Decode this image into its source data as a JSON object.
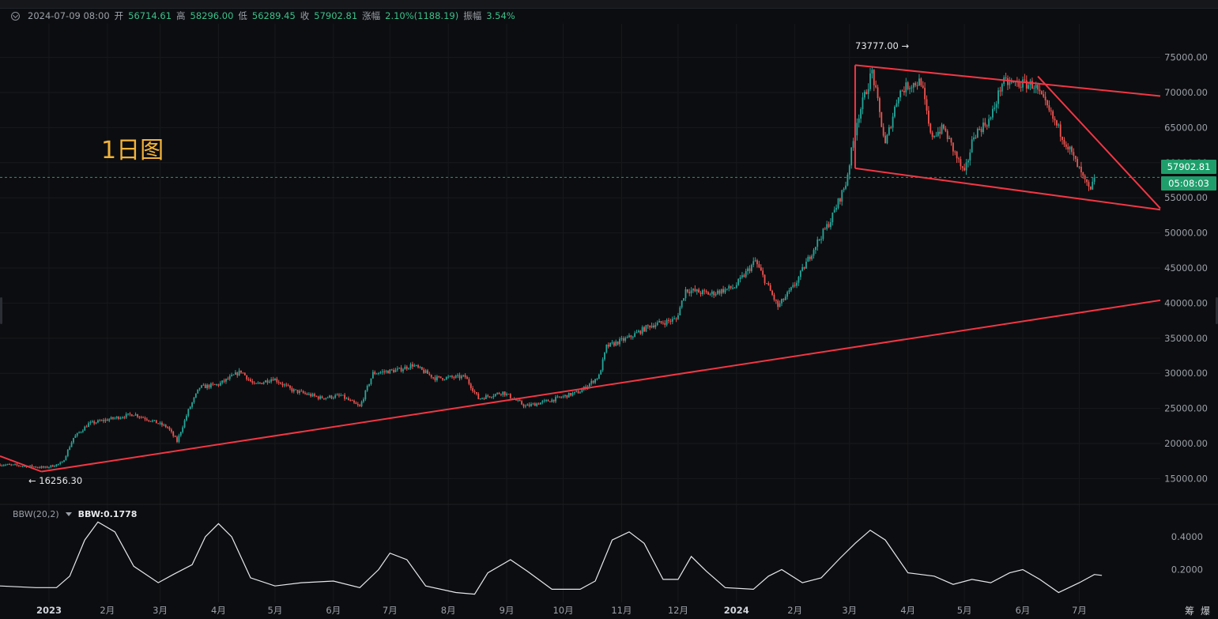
{
  "header": {
    "datetime": "2024-07-09 08:00",
    "open_label": "开",
    "open": "56714.61",
    "high_label": "高",
    "high": "58296.00",
    "low_label": "低",
    "low": "56289.45",
    "close_label": "收",
    "close": "57902.81",
    "change_label": "涨幅",
    "change": "2.10%(1188.19)",
    "amplitude_label": "振幅",
    "amplitude": "3.54%"
  },
  "annotation": "1日图",
  "markers": {
    "high": "73777.00",
    "low": "16256.30"
  },
  "price_tags": {
    "last_price": "57902.81",
    "countdown": "05:08:03"
  },
  "indicator": {
    "name": "BBW(20,2)",
    "value_text": "BBW:0.1778"
  },
  "footer_icons": [
    "筹",
    "爆"
  ],
  "colors": {
    "up": "#26a69a",
    "down": "#ef5350",
    "trendline": "#f23645",
    "last_price": "#1f9e6b",
    "annotation": "#f2b33a"
  },
  "chart_data": [
    {
      "type": "candlestick",
      "title": "",
      "y_axis_ticks": [
        15000,
        20000,
        25000,
        30000,
        35000,
        40000,
        45000,
        50000,
        55000,
        60000,
        65000,
        70000,
        75000
      ],
      "y_axis_labels": [
        "15000.00",
        "20000.00",
        "25000.00",
        "30000.00",
        "35000.00",
        "40000.00",
        "45000.00",
        "50000.00",
        "55000.00",
        "60000.00",
        "65000.00",
        "70000.00",
        "75000.00"
      ],
      "ylim": [
        10200,
        79800
      ],
      "x_range": [
        "2022-12-06",
        "2024-08-13"
      ],
      "x_axis_labels": [
        {
          "date": "2023-01-01",
          "label": "2023",
          "bold": true
        },
        {
          "date": "2023-02-01",
          "label": "2月"
        },
        {
          "date": "2023-03-01",
          "label": "3月"
        },
        {
          "date": "2023-04-01",
          "label": "4月"
        },
        {
          "date": "2023-05-01",
          "label": "5月"
        },
        {
          "date": "2023-06-01",
          "label": "6月"
        },
        {
          "date": "2023-07-01",
          "label": "7月"
        },
        {
          "date": "2023-08-01",
          "label": "8月"
        },
        {
          "date": "2023-09-01",
          "label": "9月"
        },
        {
          "date": "2023-10-01",
          "label": "10月"
        },
        {
          "date": "2023-11-01",
          "label": "11月"
        },
        {
          "date": "2023-12-01",
          "label": "12月"
        },
        {
          "date": "2024-01-01",
          "label": "2024",
          "bold": true
        },
        {
          "date": "2024-02-01",
          "label": "2月"
        },
        {
          "date": "2024-03-01",
          "label": "3月"
        },
        {
          "date": "2024-04-01",
          "label": "4月"
        },
        {
          "date": "2024-05-01",
          "label": "5月"
        },
        {
          "date": "2024-06-01",
          "label": "6月"
        },
        {
          "date": "2024-07-01",
          "label": "7月"
        }
      ],
      "close_path": [
        [
          "2022-12-06",
          17000
        ],
        [
          "2022-12-20",
          16800
        ],
        [
          "2022-12-30",
          16550
        ],
        [
          "2023-01-08",
          17200
        ],
        [
          "2023-01-14",
          20800
        ],
        [
          "2023-01-22",
          22800
        ],
        [
          "2023-02-01",
          23400
        ],
        [
          "2023-02-15",
          24200
        ],
        [
          "2023-02-25",
          23200
        ],
        [
          "2023-03-05",
          22300
        ],
        [
          "2023-03-10",
          20300
        ],
        [
          "2023-03-16",
          24700
        ],
        [
          "2023-03-22",
          28000
        ],
        [
          "2023-04-01",
          28400
        ],
        [
          "2023-04-13",
          30300
        ],
        [
          "2023-04-20",
          28300
        ],
        [
          "2023-04-30",
          29300
        ],
        [
          "2023-05-10",
          27600
        ],
        [
          "2023-05-25",
          26500
        ],
        [
          "2023-06-05",
          26800
        ],
        [
          "2023-06-15",
          25200
        ],
        [
          "2023-06-22",
          30000
        ],
        [
          "2023-07-06",
          30500
        ],
        [
          "2023-07-13",
          31200
        ],
        [
          "2023-07-25",
          29300
        ],
        [
          "2023-08-10",
          29500
        ],
        [
          "2023-08-17",
          26400
        ],
        [
          "2023-08-30",
          27300
        ],
        [
          "2023-09-11",
          25300
        ],
        [
          "2023-09-25",
          26200
        ],
        [
          "2023-10-10",
          27400
        ],
        [
          "2023-10-20",
          29600
        ],
        [
          "2023-10-24",
          33800
        ],
        [
          "2023-11-05",
          35100
        ],
        [
          "2023-11-16",
          36800
        ],
        [
          "2023-11-30",
          37700
        ],
        [
          "2023-12-05",
          41900
        ],
        [
          "2023-12-18",
          41300
        ],
        [
          "2023-12-31",
          42300
        ],
        [
          "2024-01-11",
          46000
        ],
        [
          "2024-01-23",
          39500
        ],
        [
          "2024-02-01",
          42600
        ],
        [
          "2024-02-12",
          48300
        ],
        [
          "2024-02-20",
          51800
        ],
        [
          "2024-02-28",
          57000
        ],
        [
          "2024-03-05",
          66000
        ],
        [
          "2024-03-13",
          73000
        ],
        [
          "2024-03-20",
          62500
        ],
        [
          "2024-03-27",
          69900
        ],
        [
          "2024-04-01",
          71000
        ],
        [
          "2024-04-08",
          71600
        ],
        [
          "2024-04-13",
          63800
        ],
        [
          "2024-04-20",
          64900
        ],
        [
          "2024-05-01",
          58300
        ],
        [
          "2024-05-06",
          64000
        ],
        [
          "2024-05-15",
          66300
        ],
        [
          "2024-05-21",
          71400
        ],
        [
          "2024-06-07",
          71100
        ],
        [
          "2024-06-20",
          64800
        ],
        [
          "2024-06-26",
          61800
        ],
        [
          "2024-07-04",
          57200
        ],
        [
          "2024-07-07",
          55800
        ],
        [
          "2024-07-09",
          57902.81
        ]
      ],
      "trendlines": [
        {
          "from": [
            "2022-12-06",
            18200
          ],
          "to": [
            "2022-12-28",
            16000
          ]
        },
        {
          "from": [
            "2022-12-28",
            16000
          ],
          "to": [
            "2024-08-13",
            40400
          ]
        },
        {
          "from": [
            "2024-03-04",
            73900
          ],
          "to": [
            "2024-08-13",
            69500
          ]
        },
        {
          "from": [
            "2024-03-04",
            59200
          ],
          "to": [
            "2024-08-13",
            53300
          ]
        },
        {
          "from": [
            "2024-06-09",
            72300
          ],
          "to": [
            "2024-08-13",
            53500
          ]
        },
        {
          "from": [
            "2024-03-04",
            73900
          ],
          "to": [
            "2024-03-04",
            59200
          ]
        }
      ],
      "last_price": 57902.81
    },
    {
      "type": "line",
      "name": "BBW(20,2)",
      "y_axis_labels": [
        "0.4000",
        "0.2000"
      ],
      "y_axis_ticks": [
        0.4,
        0.2
      ],
      "ylim": [
        0.0,
        0.53
      ],
      "points": [
        [
          "2022-12-06",
          0.1
        ],
        [
          "2022-12-25",
          0.09
        ],
        [
          "2023-01-05",
          0.09
        ],
        [
          "2023-01-12",
          0.16
        ],
        [
          "2023-01-20",
          0.38
        ],
        [
          "2023-01-27",
          0.49
        ],
        [
          "2023-02-05",
          0.43
        ],
        [
          "2023-02-15",
          0.22
        ],
        [
          "2023-02-28",
          0.12
        ],
        [
          "2023-03-08",
          0.17
        ],
        [
          "2023-03-18",
          0.23
        ],
        [
          "2023-03-25",
          0.4
        ],
        [
          "2023-04-01",
          0.48
        ],
        [
          "2023-04-08",
          0.4
        ],
        [
          "2023-04-18",
          0.15
        ],
        [
          "2023-05-01",
          0.1
        ],
        [
          "2023-05-15",
          0.12
        ],
        [
          "2023-06-01",
          0.13
        ],
        [
          "2023-06-15",
          0.09
        ],
        [
          "2023-06-25",
          0.2
        ],
        [
          "2023-07-01",
          0.3
        ],
        [
          "2023-07-10",
          0.26
        ],
        [
          "2023-07-20",
          0.1
        ],
        [
          "2023-08-05",
          0.06
        ],
        [
          "2023-08-15",
          0.05
        ],
        [
          "2023-08-22",
          0.18
        ],
        [
          "2023-09-03",
          0.26
        ],
        [
          "2023-09-12",
          0.19
        ],
        [
          "2023-09-25",
          0.08
        ],
        [
          "2023-10-10",
          0.08
        ],
        [
          "2023-10-18",
          0.13
        ],
        [
          "2023-10-27",
          0.38
        ],
        [
          "2023-11-05",
          0.43
        ],
        [
          "2023-11-13",
          0.36
        ],
        [
          "2023-11-23",
          0.14
        ],
        [
          "2023-12-01",
          0.14
        ],
        [
          "2023-12-08",
          0.28
        ],
        [
          "2023-12-16",
          0.19
        ],
        [
          "2023-12-26",
          0.09
        ],
        [
          "2024-01-10",
          0.08
        ],
        [
          "2024-01-18",
          0.16
        ],
        [
          "2024-01-25",
          0.2
        ],
        [
          "2024-02-05",
          0.12
        ],
        [
          "2024-02-15",
          0.15
        ],
        [
          "2024-02-25",
          0.27
        ],
        [
          "2024-03-04",
          0.36
        ],
        [
          "2024-03-12",
          0.44
        ],
        [
          "2024-03-20",
          0.38
        ],
        [
          "2024-04-01",
          0.18
        ],
        [
          "2024-04-15",
          0.16
        ],
        [
          "2024-04-25",
          0.11
        ],
        [
          "2024-05-05",
          0.14
        ],
        [
          "2024-05-15",
          0.12
        ],
        [
          "2024-05-25",
          0.18
        ],
        [
          "2024-06-01",
          0.2
        ],
        [
          "2024-06-10",
          0.14
        ],
        [
          "2024-06-20",
          0.06
        ],
        [
          "2024-07-01",
          0.12
        ],
        [
          "2024-07-09",
          0.17
        ],
        [
          "2024-07-13",
          0.165
        ]
      ]
    }
  ]
}
